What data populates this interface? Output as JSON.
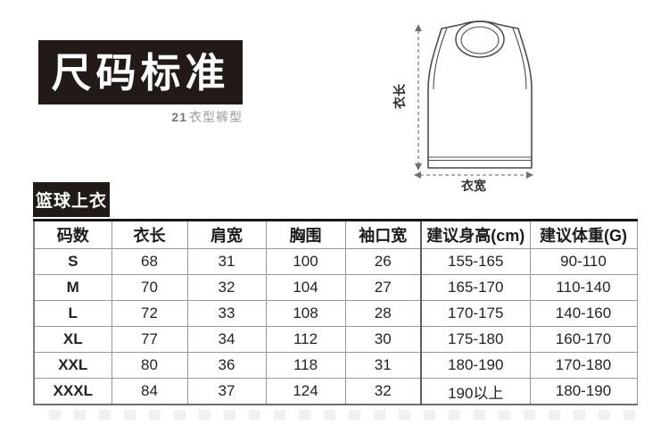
{
  "colors": {
    "panel_bg": "#211a16",
    "border_gray": "#9a9a9a",
    "text_dark": "#232323",
    "subtitle_gray": "#9b9b9b"
  },
  "title_block": {
    "title": "尺码标准",
    "subtitle_num": "21",
    "subtitle_text": "衣型裤型"
  },
  "diagram": {
    "length_label": "衣长",
    "width_label": "衣宽"
  },
  "section": {
    "label": "篮球上衣"
  },
  "table": {
    "headers": [
      "码数",
      "衣长",
      "肩宽",
      "胸围",
      "袖口宽",
      "建议身高(cm)",
      "建议体重(G)"
    ],
    "rows": [
      [
        "S",
        "68",
        "31",
        "100",
        "26",
        "155-165",
        "90-110"
      ],
      [
        "M",
        "70",
        "32",
        "104",
        "27",
        "165-170",
        "110-140"
      ],
      [
        "L",
        "72",
        "33",
        "108",
        "28",
        "170-175",
        "140-160"
      ],
      [
        "XL",
        "77",
        "34",
        "112",
        "30",
        "175-180",
        "160-170"
      ],
      [
        "XXL",
        "80",
        "36",
        "118",
        "31",
        "180-190",
        "170-180"
      ],
      [
        "XXXL",
        "84",
        "37",
        "124",
        "32",
        "190以上",
        "180-190"
      ]
    ]
  }
}
